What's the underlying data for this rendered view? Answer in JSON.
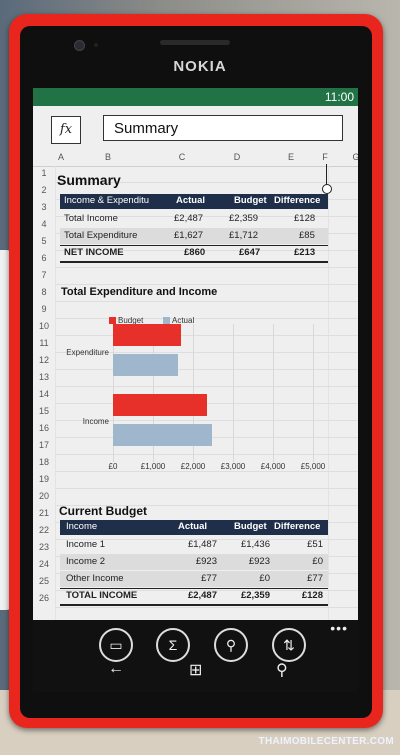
{
  "device": {
    "brand": "NOKIA"
  },
  "status": {
    "time": "11:00"
  },
  "formula_bar": {
    "fx_label": "fx",
    "value": "Summary"
  },
  "columns": [
    "A",
    "B",
    "C",
    "D",
    "E",
    "F",
    "G"
  ],
  "rows": [
    "1",
    "2",
    "3",
    "4",
    "5",
    "6",
    "7",
    "8",
    "9",
    "10",
    "11",
    "12",
    "13",
    "14",
    "15",
    "16",
    "17",
    "18",
    "19",
    "20",
    "21",
    "22",
    "23",
    "24",
    "25",
    "26"
  ],
  "summary": {
    "title": "Summary",
    "headers": [
      "Income & Expenditu",
      "Actual",
      "Budget",
      "Difference"
    ],
    "rows": [
      [
        "Total Income",
        "£2,487",
        "£2,359",
        "£128"
      ],
      [
        "Total Expenditure",
        "£1,627",
        "£1,712",
        "£85"
      ],
      [
        "NET INCOME",
        "£860",
        "£647",
        "£213"
      ]
    ]
  },
  "chart": {
    "title": "Total Expenditure and Income",
    "legend": [
      "Budget",
      "Actual"
    ],
    "colors": {
      "budget": "#e8302a",
      "actual": "#9fb7cc"
    },
    "ticks": [
      "£0",
      "£1,000",
      "£2,000",
      "£3,000",
      "£4,000",
      "£5,000"
    ]
  },
  "chart_data": {
    "type": "bar",
    "orientation": "horizontal",
    "title": "Total Expenditure and Income",
    "categories": [
      "Expenditure",
      "Income"
    ],
    "series": [
      {
        "name": "Budget",
        "values": [
          1712,
          2359
        ]
      },
      {
        "name": "Actual",
        "values": [
          1627,
          2487
        ]
      }
    ],
    "xlim": [
      0,
      5000
    ],
    "tick_labels": [
      "£0",
      "£1,000",
      "£2,000",
      "£3,000",
      "£4,000",
      "£5,000"
    ],
    "legend_position": "top"
  },
  "budget": {
    "title": "Current Budget",
    "headers": [
      "Income",
      "Actual",
      "Budget",
      "Difference"
    ],
    "rows": [
      [
        "Income 1",
        "£1,487",
        "£1,436",
        "£51"
      ],
      [
        "Income 2",
        "£923",
        "£923",
        "£0"
      ],
      [
        "Other Income",
        "£77",
        "£0",
        "£77"
      ],
      [
        "TOTAL INCOME",
        "£2,487",
        "£2,359",
        "£128"
      ]
    ]
  },
  "app_bar": {
    "icons": [
      "present-icon",
      "sum-icon",
      "search-icon",
      "sort-icon"
    ],
    "glyphs": [
      "▭",
      "Σ",
      "⚲",
      "⇅"
    ],
    "more": "•••"
  },
  "nav": {
    "back": "←",
    "start": "⊞",
    "search": "⚲"
  },
  "watermark": "THAIMOBILECENTER.COM"
}
